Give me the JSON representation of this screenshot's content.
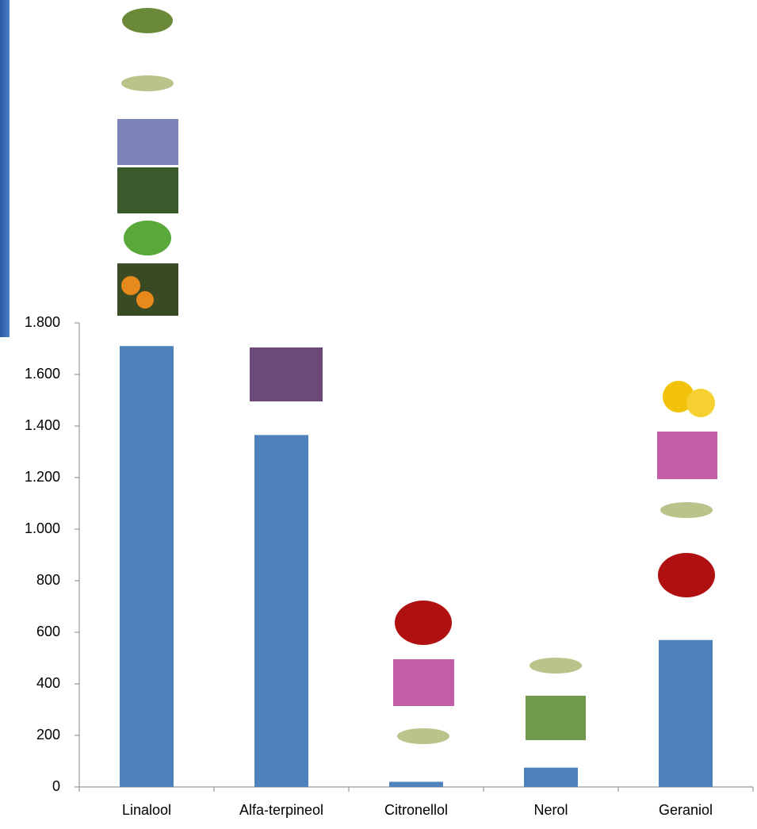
{
  "chart_data": {
    "type": "bar",
    "categories": [
      "Linalool",
      "Alfa-terpineol",
      "Citronellol",
      "Nerol",
      "Geraniol"
    ],
    "values": [
      1710,
      1365,
      20,
      75,
      570
    ],
    "color": "#4f81bd",
    "ylim": [
      0,
      1800
    ],
    "yticks": [
      0,
      200,
      400,
      600,
      800,
      {
        "value": 1000,
        "label": "1.000"
      },
      {
        "value": 1200,
        "label": "1.200"
      },
      {
        "value": 1400,
        "label": "1.400"
      },
      {
        "value": 1600,
        "label": "1.600"
      },
      {
        "value": 1800,
        "label": "1.800"
      }
    ]
  }
}
